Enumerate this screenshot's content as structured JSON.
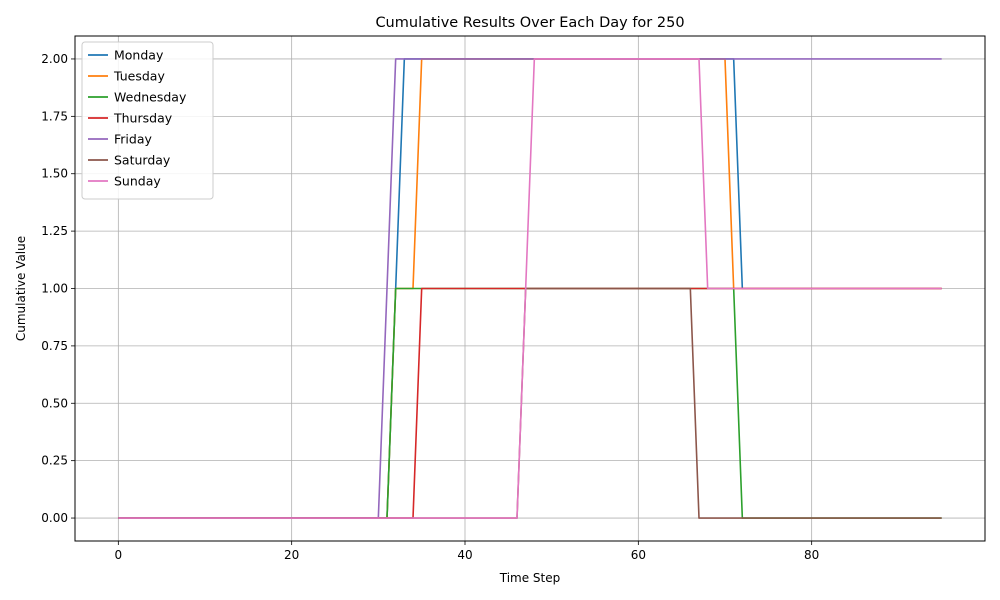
{
  "chart_data": {
    "type": "line",
    "title": "Cumulative Results Over Each Day for 250",
    "xlabel": "Time Step",
    "ylabel": "Cumulative Value",
    "xlim": [
      -5,
      100
    ],
    "ylim": [
      -0.1,
      2.1
    ],
    "xticks": [
      0,
      20,
      40,
      60,
      80
    ],
    "yticks": [
      0.0,
      0.25,
      0.5,
      0.75,
      1.0,
      1.25,
      1.5,
      1.75,
      2.0
    ],
    "grid": true,
    "legend_position": "top-left",
    "series": [
      {
        "name": "Monday",
        "color": "#1f77b4",
        "points": [
          [
            0,
            0
          ],
          [
            31,
            0
          ],
          [
            32,
            1
          ],
          [
            33,
            2
          ],
          [
            71,
            2
          ],
          [
            72,
            1
          ],
          [
            95,
            1
          ]
        ]
      },
      {
        "name": "Tuesday",
        "color": "#ff7f0e",
        "points": [
          [
            0,
            0
          ],
          [
            31,
            0
          ],
          [
            32,
            1
          ],
          [
            34,
            1
          ],
          [
            35,
            2
          ],
          [
            70,
            2
          ],
          [
            71,
            1
          ],
          [
            95,
            1
          ]
        ]
      },
      {
        "name": "Wednesday",
        "color": "#2ca02c",
        "points": [
          [
            0,
            0
          ],
          [
            31,
            0
          ],
          [
            32,
            1
          ],
          [
            71,
            1
          ],
          [
            72,
            0
          ],
          [
            95,
            0
          ]
        ]
      },
      {
        "name": "Thursday",
        "color": "#d62728",
        "points": [
          [
            0,
            0
          ],
          [
            34,
            0
          ],
          [
            35,
            1
          ],
          [
            95,
            1
          ]
        ]
      },
      {
        "name": "Friday",
        "color": "#9467bd",
        "points": [
          [
            0,
            0
          ],
          [
            30,
            0
          ],
          [
            32,
            2
          ],
          [
            95,
            2
          ]
        ]
      },
      {
        "name": "Saturday",
        "color": "#8c564b",
        "points": [
          [
            0,
            0
          ],
          [
            46,
            0
          ],
          [
            47,
            1
          ],
          [
            66,
            1
          ],
          [
            67,
            0
          ],
          [
            95,
            0
          ]
        ]
      },
      {
        "name": "Sunday",
        "color": "#e377c2",
        "points": [
          [
            0,
            0
          ],
          [
            46,
            0
          ],
          [
            48,
            2
          ],
          [
            67,
            2
          ],
          [
            68,
            1
          ],
          [
            95,
            1
          ]
        ]
      }
    ]
  }
}
